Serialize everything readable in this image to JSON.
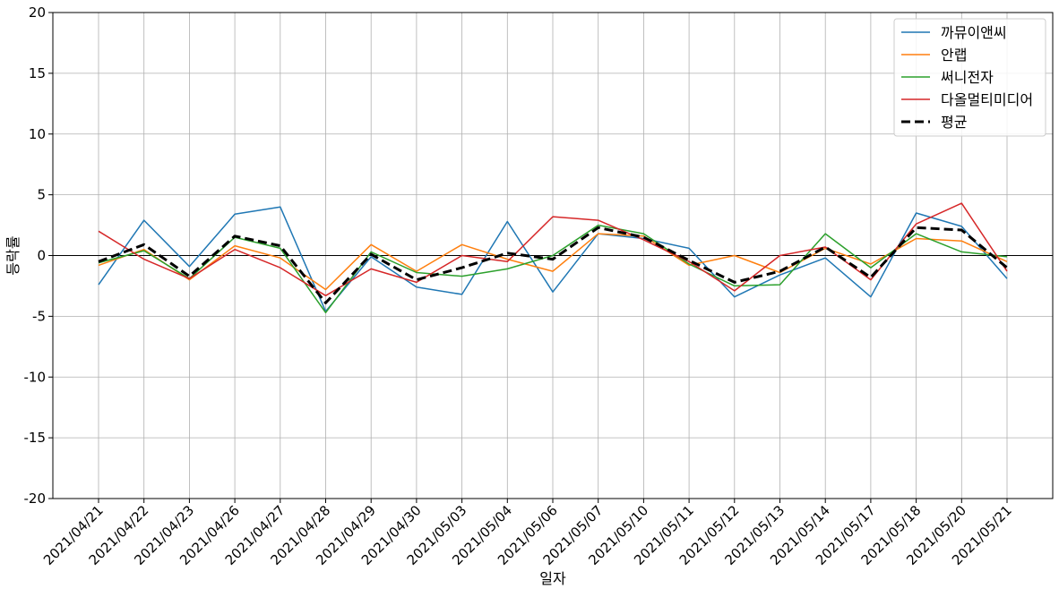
{
  "chart_data": {
    "type": "line",
    "title": "",
    "xlabel": "일자",
    "ylabel": "등락률",
    "ylim": [
      -20,
      20
    ],
    "yticks": [
      -20,
      -15,
      -10,
      -5,
      0,
      5,
      10,
      15,
      20
    ],
    "grid": true,
    "legend_position": "top-right",
    "categories": [
      "2021/04/21",
      "2021/04/22",
      "2021/04/23",
      "2021/04/26",
      "2021/04/27",
      "2021/04/28",
      "2021/04/29",
      "2021/04/30",
      "2021/05/03",
      "2021/05/04",
      "2021/05/06",
      "2021/05/07",
      "2021/05/10",
      "2021/05/11",
      "2021/05/12",
      "2021/05/13",
      "2021/05/14",
      "2021/05/17",
      "2021/05/18",
      "2021/05/20",
      "2021/05/21"
    ],
    "series": [
      {
        "name": "까뮤이앤씨",
        "color": "#1f77b4",
        "style": "solid",
        "values": [
          -2.4,
          2.9,
          -0.9,
          3.4,
          4.0,
          -4.6,
          -0.1,
          -2.6,
          -3.2,
          2.8,
          -3.0,
          1.8,
          1.4,
          0.6,
          -3.4,
          -1.6,
          -0.2,
          -3.4,
          3.5,
          2.4,
          -1.9
        ]
      },
      {
        "name": "안랩",
        "color": "#ff7f0e",
        "style": "solid",
        "values": [
          -0.8,
          0.5,
          -2.0,
          0.8,
          -0.2,
          -2.8,
          0.9,
          -1.3,
          0.9,
          -0.3,
          -1.3,
          1.8,
          1.6,
          -0.8,
          0.0,
          -1.4,
          0.6,
          -0.7,
          1.4,
          1.2,
          -0.5
        ]
      },
      {
        "name": "써니전자",
        "color": "#2ca02c",
        "style": "solid",
        "values": [
          -0.6,
          0.4,
          -1.9,
          1.5,
          0.6,
          -4.7,
          0.3,
          -1.4,
          -1.7,
          -1.1,
          0.0,
          2.5,
          1.8,
          -0.7,
          -2.5,
          -2.4,
          1.8,
          -1.0,
          1.8,
          0.3,
          -0.1
        ]
      },
      {
        "name": "다올멀티미디어",
        "color": "#d62728",
        "style": "solid",
        "values": [
          2.0,
          -0.3,
          -1.9,
          0.5,
          -1.0,
          -3.3,
          -1.1,
          -2.2,
          0.0,
          -0.5,
          3.2,
          2.9,
          1.3,
          -0.5,
          -2.9,
          0.0,
          0.7,
          -2.0,
          2.6,
          4.3,
          -1.3
        ]
      },
      {
        "name": "평균",
        "color": "#000000",
        "style": "dashed",
        "values": [
          -0.5,
          0.9,
          -1.7,
          1.6,
          0.8,
          -3.9,
          0.1,
          -2.0,
          -1.0,
          0.2,
          -0.3,
          2.3,
          1.5,
          -0.4,
          -2.2,
          -1.3,
          0.7,
          -1.8,
          2.3,
          2.1,
          -1.0
        ]
      }
    ]
  }
}
